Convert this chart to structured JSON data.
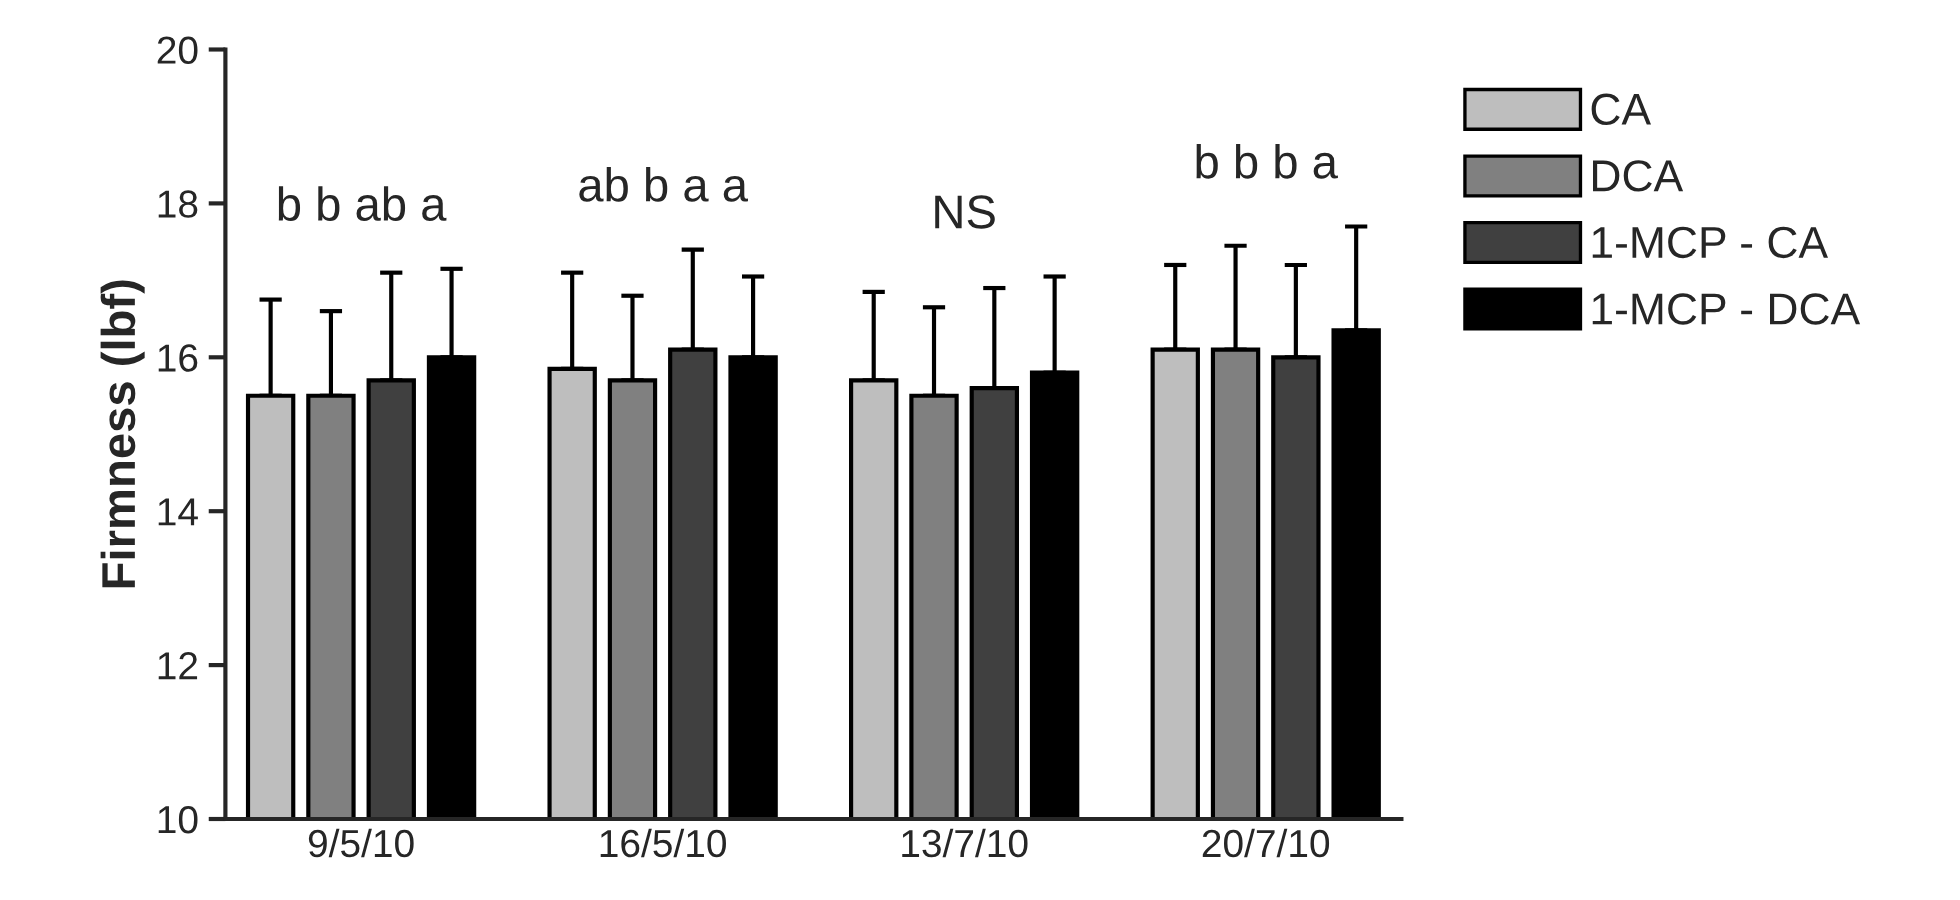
{
  "chart_data": {
    "type": "bar",
    "ylabel": "Firmness (lbf)",
    "categories": [
      "9/5/10",
      "16/5/10",
      "13/7/10",
      "20/7/10"
    ],
    "series": [
      {
        "name": "CA",
        "color": "#bebebe",
        "values": [
          15.5,
          15.85,
          15.7,
          16.1
        ],
        "errors": [
          [
            15.5,
            16.75
          ],
          [
            15.85,
            17.1
          ],
          [
            15.7,
            16.85
          ],
          [
            16.1,
            17.2
          ]
        ]
      },
      {
        "name": "DCA",
        "color": "#808080",
        "values": [
          15.5,
          15.7,
          15.5,
          16.1
        ],
        "errors": [
          [
            15.5,
            16.6
          ],
          [
            15.7,
            16.8
          ],
          [
            15.5,
            16.65
          ],
          [
            16.1,
            17.45
          ]
        ]
      },
      {
        "name": "1-MCP - CA",
        "color": "#404040",
        "values": [
          15.7,
          16.1,
          15.6,
          16.0
        ],
        "errors": [
          [
            15.7,
            17.1
          ],
          [
            16.1,
            17.4
          ],
          [
            15.6,
            16.9
          ],
          [
            16.0,
            17.2
          ]
        ]
      },
      {
        "name": "1-MCP - DCA",
        "color": "#000000",
        "values": [
          16.0,
          16.0,
          15.8,
          16.35
        ],
        "errors": [
          [
            16.0,
            17.15
          ],
          [
            16.0,
            17.05
          ],
          [
            15.8,
            17.05
          ],
          [
            16.35,
            17.7
          ]
        ]
      }
    ],
    "ylim": [
      10,
      20
    ],
    "yticks": [
      10,
      12,
      14,
      16,
      18,
      20
    ],
    "grid": false,
    "legend": "right",
    "annotations": [
      "b b ab a",
      "ab b a a",
      "NS",
      "b b b a"
    ]
  }
}
